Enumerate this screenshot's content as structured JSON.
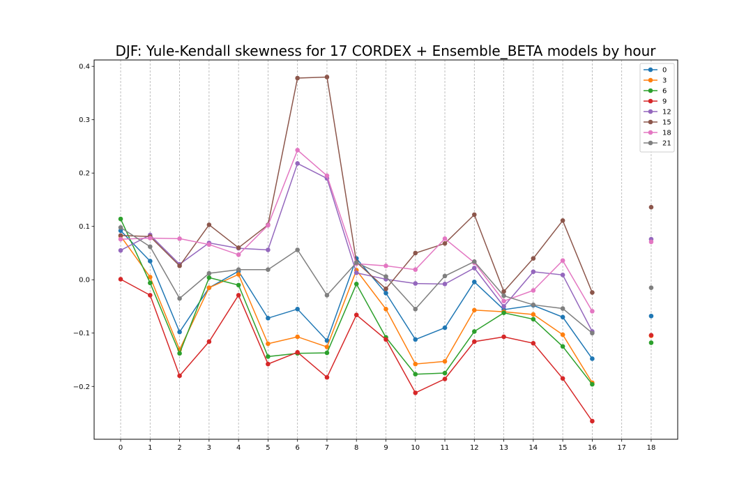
{
  "chart_data": {
    "type": "line",
    "title": "DJF: Yule-Kendall skewness for 17 CORDEX + Ensemble_BETA models by hour",
    "xlabel": "",
    "ylabel": "",
    "x": [
      0,
      1,
      2,
      3,
      4,
      5,
      6,
      7,
      8,
      9,
      10,
      11,
      12,
      13,
      14,
      15,
      16,
      17,
      18
    ],
    "x_tick_labels": [
      "0",
      "1",
      "2",
      "3",
      "4",
      "5",
      "6",
      "7",
      "8",
      "9",
      "10",
      "11",
      "12",
      "13",
      "14",
      "15",
      "16",
      "17",
      "18"
    ],
    "y_ticks": [
      -0.2,
      -0.1,
      0.0,
      0.1,
      0.2,
      0.3,
      0.4
    ],
    "y_tick_labels": [
      "−0.2",
      "−0.1",
      "0.0",
      "0.1",
      "0.2",
      "0.3",
      "0.4"
    ],
    "xlim": [
      -0.9,
      18.9
    ],
    "ylim": [
      -0.299,
      0.412
    ],
    "grid": "vertical dashed",
    "legend_position": "top-right",
    "series": [
      {
        "name": "0",
        "color": "#1f77b4",
        "values": [
          0.092,
          0.035,
          -0.098,
          -0.015,
          0.016,
          -0.072,
          -0.055,
          -0.114,
          0.04,
          -0.025,
          -0.112,
          -0.09,
          -0.004,
          -0.056,
          -0.048,
          -0.07,
          -0.148,
          null,
          -0.068
        ]
      },
      {
        "name": "3",
        "color": "#ff7f0e",
        "values": [
          0.082,
          0.005,
          -0.131,
          -0.015,
          0.01,
          -0.12,
          -0.107,
          -0.126,
          0.018,
          -0.055,
          -0.158,
          -0.153,
          -0.057,
          -0.06,
          -0.065,
          -0.103,
          -0.193,
          null,
          -0.105
        ]
      },
      {
        "name": "6",
        "color": "#2ca02c",
        "values": [
          0.114,
          -0.006,
          -0.138,
          0.004,
          -0.01,
          -0.144,
          -0.138,
          -0.137,
          -0.008,
          -0.108,
          -0.177,
          -0.175,
          -0.097,
          -0.062,
          -0.074,
          -0.125,
          -0.196,
          null,
          -0.118
        ]
      },
      {
        "name": "9",
        "color": "#d62728",
        "values": [
          0.001,
          -0.029,
          -0.18,
          -0.116,
          -0.029,
          -0.158,
          -0.136,
          -0.183,
          -0.066,
          -0.112,
          -0.212,
          -0.186,
          -0.116,
          -0.107,
          -0.119,
          -0.185,
          -0.265,
          null,
          -0.104
        ]
      },
      {
        "name": "12",
        "color": "#9467bd",
        "values": [
          0.055,
          0.084,
          0.029,
          0.069,
          0.059,
          0.056,
          0.218,
          0.19,
          0.013,
          0.001,
          -0.007,
          -0.008,
          0.022,
          -0.05,
          0.015,
          0.009,
          -0.097,
          null,
          0.076
        ]
      },
      {
        "name": "15",
        "color": "#8c564b",
        "values": [
          0.083,
          0.081,
          0.026,
          0.103,
          0.06,
          0.103,
          0.378,
          0.38,
          0.033,
          -0.017,
          0.05,
          0.068,
          0.122,
          -0.022,
          0.04,
          0.111,
          -0.024,
          null,
          0.136
        ]
      },
      {
        "name": "18",
        "color": "#e377c2",
        "values": [
          0.076,
          0.078,
          0.077,
          0.066,
          0.047,
          0.102,
          0.243,
          0.195,
          0.03,
          0.026,
          0.019,
          0.077,
          0.032,
          -0.04,
          -0.02,
          0.036,
          -0.059,
          null,
          0.071
        ]
      },
      {
        "name": "21",
        "color": "#7f7f7f",
        "values": [
          0.098,
          0.062,
          -0.035,
          0.012,
          0.019,
          0.019,
          0.056,
          -0.029,
          0.032,
          0.006,
          -0.055,
          0.007,
          0.034,
          -0.03,
          -0.047,
          -0.054,
          -0.1,
          null,
          -0.015
        ]
      }
    ]
  }
}
